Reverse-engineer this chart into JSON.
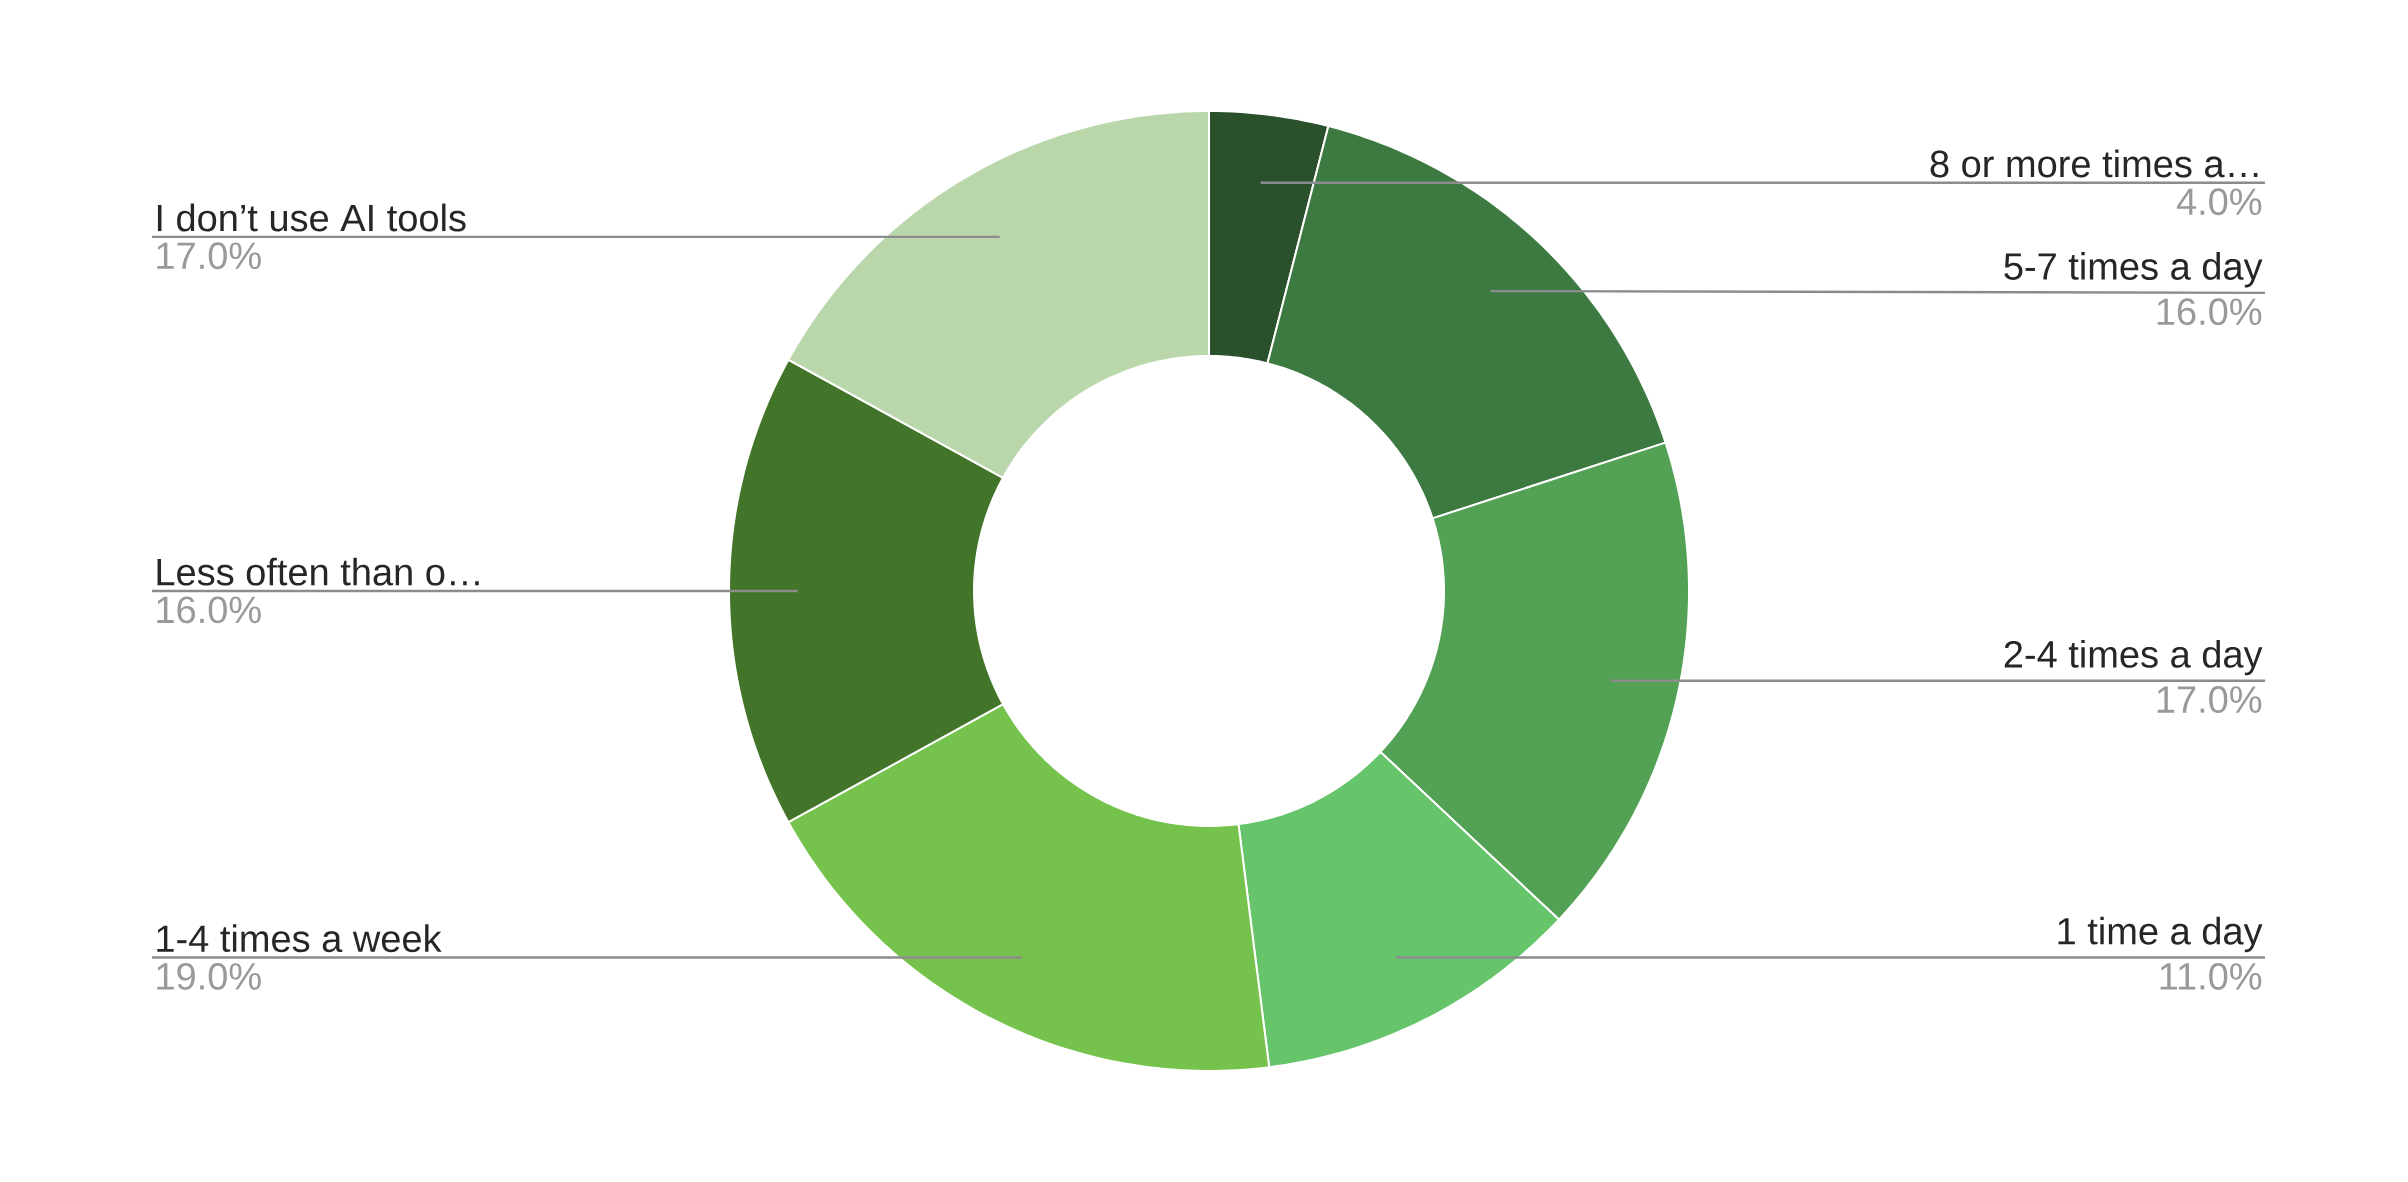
{
  "chart_data": {
    "type": "donut",
    "categories": [
      "8 or more times a…",
      "5-7 times a day",
      "2-4 times a day",
      "1 time a day",
      "1-4 times a week",
      "Less often than o…",
      "I don’t use AI tools"
    ],
    "values": [
      4,
      16,
      17,
      11,
      19,
      16,
      17
    ],
    "value_labels": [
      "4.0%",
      "16.0%",
      "17.0%",
      "11.0%",
      "19.0%",
      "16.0%",
      "17.0%"
    ],
    "colors": [
      "#2a502c",
      "#3d7a42",
      "#53a155",
      "#66c46b",
      "#75c24c",
      "#42752a",
      "#b9d7ab"
    ]
  }
}
